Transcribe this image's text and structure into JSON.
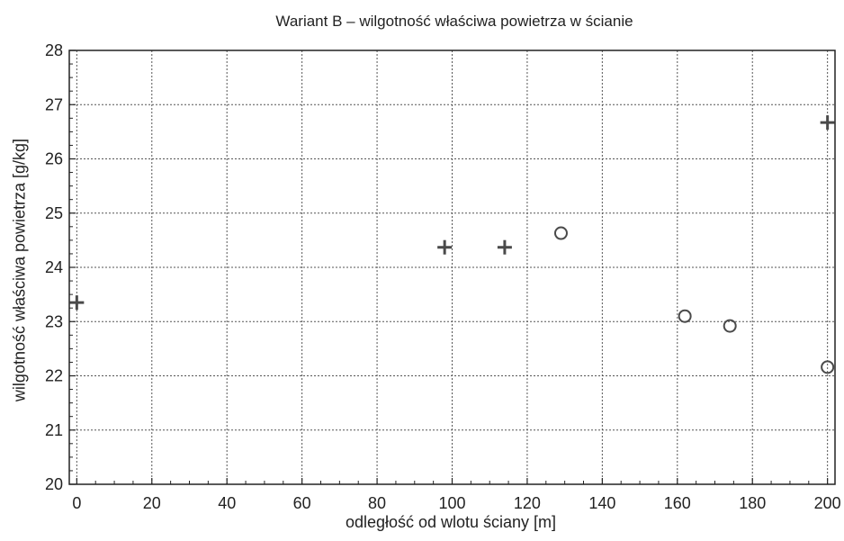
{
  "chart_data": {
    "type": "scatter",
    "title": "Wariant B – wilgotność właściwa powietrza w ścianie",
    "xlabel": "odległość od wlotu ściany [m]",
    "ylabel": "wilgotność właściwa powietrza [g/kg]",
    "xlim": [
      -2,
      202
    ],
    "ylim": [
      20,
      28
    ],
    "x_ticks": [
      "0",
      "20",
      "40",
      "60",
      "80",
      "100",
      "120",
      "140",
      "160",
      "180",
      "200"
    ],
    "y_ticks": [
      "20",
      "21",
      "22",
      "23",
      "24",
      "25",
      "26",
      "27",
      "28"
    ],
    "grid": true,
    "grid_style": "dotted",
    "series": [
      {
        "marker": "plus",
        "color": "#4a4a4a",
        "points": [
          {
            "x": 0,
            "y": 23.35
          },
          {
            "x": 98,
            "y": 24.37
          },
          {
            "x": 114,
            "y": 24.37
          },
          {
            "x": 200,
            "y": 26.67
          }
        ]
      },
      {
        "marker": "circle",
        "color": "#4a4a4a",
        "points": [
          {
            "x": 129,
            "y": 24.63
          },
          {
            "x": 162,
            "y": 23.1
          },
          {
            "x": 174,
            "y": 22.92
          },
          {
            "x": 200,
            "y": 22.16
          }
        ]
      }
    ]
  }
}
